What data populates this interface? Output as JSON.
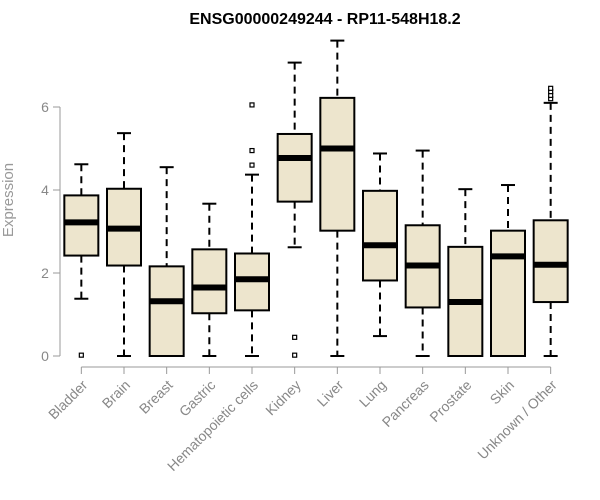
{
  "chart_data": {
    "type": "boxplot",
    "title": "ENSG00000249244 - RP11-548H18.2",
    "xlabel": "",
    "ylabel": "Expression",
    "ylim": [
      0,
      7.7
    ],
    "yticks": [
      0,
      2,
      4,
      6
    ],
    "box_fill": "#ede5cd",
    "categories": [
      "Bladder",
      "Brain",
      "Breast",
      "Gastric",
      "Hematopoietic cells",
      "Kidney",
      "Liver",
      "Lung",
      "Pancreas",
      "Prostate",
      "Skin",
      "Unknown / Other"
    ],
    "boxes": [
      {
        "min": 1.38,
        "q1": 2.42,
        "median": 3.22,
        "q3": 3.87,
        "max": 4.62,
        "outliers": [
          0.02
        ]
      },
      {
        "min": 0.0,
        "q1": 2.18,
        "median": 3.07,
        "q3": 4.03,
        "max": 5.37,
        "outliers": []
      },
      {
        "min": 0.0,
        "q1": 0.0,
        "median": 1.32,
        "q3": 2.16,
        "max": 4.55,
        "outliers": []
      },
      {
        "min": 0.0,
        "q1": 1.03,
        "median": 1.65,
        "q3": 2.57,
        "max": 3.67,
        "outliers": []
      },
      {
        "min": 0.0,
        "q1": 1.1,
        "median": 1.85,
        "q3": 2.47,
        "max": 4.37,
        "outliers": [
          4.6,
          4.95,
          6.05
        ]
      },
      {
        "min": 2.62,
        "q1": 3.72,
        "median": 4.77,
        "q3": 5.35,
        "max": 7.07,
        "outliers": [
          0.02,
          0.45
        ]
      },
      {
        "min": 0.0,
        "q1": 3.02,
        "median": 5.0,
        "q3": 6.22,
        "max": 7.6,
        "outliers": []
      },
      {
        "min": 0.48,
        "q1": 1.82,
        "median": 2.67,
        "q3": 3.98,
        "max": 4.88,
        "outliers": []
      },
      {
        "min": 0.0,
        "q1": 1.17,
        "median": 2.18,
        "q3": 3.15,
        "max": 4.95,
        "outliers": []
      },
      {
        "min": 0.0,
        "q1": 0.0,
        "median": 1.3,
        "q3": 2.63,
        "max": 4.02,
        "outliers": []
      },
      {
        "min": 0.0,
        "q1": 0.0,
        "median": 2.4,
        "q3": 3.02,
        "max": 4.12,
        "outliers": []
      },
      {
        "min": 0.0,
        "q1": 1.3,
        "median": 2.2,
        "q3": 3.27,
        "max": 6.1,
        "outliers": [
          6.2,
          6.28,
          6.37,
          6.45
        ]
      }
    ]
  }
}
